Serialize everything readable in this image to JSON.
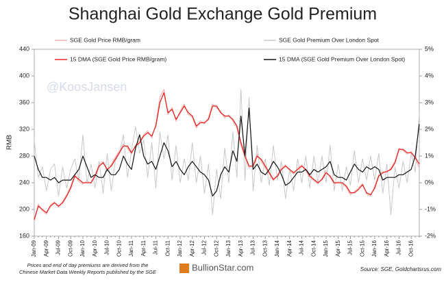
{
  "chart_data": {
    "type": "line",
    "title": "Shanghai Gold Exchange Gold Premium",
    "ylabel": "RMB",
    "watermark": "@KoosJansen",
    "note": [
      "Prices and end of day premiums are derived from the",
      "Chinese Market Data Weekly Reports published by the SGE"
    ],
    "logo": "BullionStar.com",
    "source": "Source: SGE, Goldchartsrus.com",
    "categories": [
      "Jan-09",
      null,
      null,
      "Apr-09",
      null,
      null,
      "Jul-09",
      null,
      null,
      "Oct-09",
      null,
      null,
      "Jan-10",
      null,
      null,
      "Apr-10",
      null,
      null,
      "Jul-10",
      null,
      null,
      "Oct-10",
      null,
      null,
      "Jan-11",
      null,
      null,
      "Apr-11",
      null,
      null,
      "Jul-11",
      null,
      null,
      "Oct-11",
      null,
      null,
      "Jan-12",
      null,
      null,
      "Apr-12",
      null,
      null,
      "Jul-12",
      null,
      null,
      "Oct-12",
      null,
      null,
      "Jan-13",
      null,
      null,
      "Apr-13",
      null,
      null,
      "Jul-13",
      null,
      null,
      "Oct-13",
      null,
      null,
      "Jan-14",
      null,
      null,
      "Apr-14",
      null,
      null,
      "Jul-14",
      null,
      null,
      "Oct-14",
      null,
      null,
      "Jan-15",
      null,
      null,
      "Apr-15",
      null,
      null,
      "Jul-15",
      null,
      null,
      "Oct-15",
      null,
      null,
      "Jan-16",
      null,
      null,
      "Apr-16",
      null,
      null,
      "Jul-16",
      null,
      null,
      "Oct-16",
      null,
      null
    ],
    "ylim": [
      160,
      440
    ],
    "yticks": [
      160,
      200,
      240,
      280,
      320,
      360,
      400,
      440
    ],
    "y2lim": [
      -2,
      5
    ],
    "y2ticks": [
      {
        "value": -2,
        "label": "-2%"
      },
      {
        "value": -1,
        "label": "-1%"
      },
      {
        "value": 0,
        "label": "0%"
      },
      {
        "value": 1,
        "label": "1%"
      },
      {
        "value": 2,
        "label": "2%"
      },
      {
        "value": 3,
        "label": "3%"
      },
      {
        "value": 4,
        "label": "4%"
      },
      {
        "value": 5,
        "label": "5%"
      }
    ],
    "series": [
      {
        "name": "SGE Gold Price RMB/gram",
        "color": "#f5b5b5",
        "width": 1.2,
        "values": [
          182,
          208,
          198,
          193,
          207,
          211,
          203,
          212,
          222,
          235,
          253,
          242,
          238,
          243,
          239,
          252,
          268,
          272,
          258,
          267,
          278,
          288,
          298,
          292,
          283,
          297,
          303,
          312,
          318,
          307,
          328,
          368,
          380,
          342,
          353,
          332,
          348,
          358,
          342,
          338,
          322,
          333,
          328,
          338,
          358,
          352,
          347,
          337,
          342,
          332,
          322,
          296,
          278,
          262,
          268,
          283,
          272,
          262,
          253,
          243,
          252,
          262,
          267,
          258,
          253,
          262,
          267,
          258,
          248,
          243,
          238,
          247,
          258,
          248,
          238,
          242,
          238,
          233,
          222,
          227,
          232,
          239,
          223,
          220,
          235,
          252,
          257,
          255,
          262,
          272,
          292,
          288,
          283,
          287,
          276,
          262
        ]
      },
      {
        "name": "SGE Gold Premium Over London Spot",
        "color": "#c8c8c8",
        "axis": "y2",
        "width": 1,
        "values": [
          1.6,
          0.2,
          0.6,
          -0.3,
          0.5,
          0.7,
          -0.5,
          0.6,
          -0.2,
          0.5,
          0.9,
          0.1,
          1.8,
          0.0,
          0.7,
          -0.2,
          0.8,
          -0.4,
          1.1,
          -0.3,
          0.8,
          1.1,
          1.8,
          0.2,
          1.2,
          2.1,
          1.1,
          1.6,
          0.2,
          1.5,
          -0.2,
          1.9,
          0.9,
          1.8,
          0.1,
          1.4,
          0.0,
          0.9,
          0.1,
          1.5,
          0.0,
          1.0,
          -0.4,
          0.7,
          -1.2,
          0.5,
          -0.6,
          1.3,
          0.0,
          1.9,
          0.2,
          3.5,
          0.1,
          3.2,
          -0.3,
          1.4,
          0.0,
          0.9,
          -0.1,
          1.4,
          0.1,
          0.8,
          -0.6,
          0.5,
          -0.3,
          0.9,
          0.0,
          1.0,
          -0.2,
          1.0,
          0.0,
          1.0,
          0.0,
          1.4,
          -0.3,
          0.7,
          -0.3,
          0.6,
          -0.1,
          1.2,
          0.0,
          0.9,
          0.1,
          1.0,
          0.1,
          1.1,
          -0.4,
          0.7,
          -1.2,
          0.6,
          -0.2,
          0.8,
          0.0,
          1.1,
          0.4,
          2.6
        ]
      },
      {
        "name": "15 DMA (SGE Gold Price RMB/gram)",
        "color": "#e8231f",
        "width": 1.3,
        "values": [
          185,
          205,
          200,
          195,
          205,
          210,
          205,
          210,
          220,
          232,
          250,
          245,
          240,
          240,
          240,
          250,
          265,
          270,
          260,
          265,
          275,
          285,
          295,
          295,
          285,
          295,
          300,
          310,
          315,
          310,
          325,
          360,
          375,
          345,
          350,
          335,
          345,
          355,
          345,
          340,
          325,
          330,
          330,
          335,
          355,
          355,
          345,
          340,
          340,
          335,
          325,
          300,
          280,
          265,
          265,
          280,
          275,
          265,
          255,
          245,
          250,
          260,
          265,
          260,
          255,
          260,
          265,
          260,
          250,
          245,
          240,
          245,
          255,
          250,
          240,
          240,
          240,
          235,
          225,
          225,
          230,
          237,
          225,
          222,
          232,
          250,
          255,
          257,
          260,
          270,
          290,
          290,
          285,
          285,
          278,
          268
        ]
      },
      {
        "name": "15 DMA (SGE Gold Premium Over London Spot)",
        "color": "#111111",
        "axis": "y2",
        "width": 1.2,
        "values": [
          1.0,
          0.5,
          0.2,
          0.2,
          0.1,
          0.2,
          0.0,
          0.1,
          0.1,
          0.1,
          0.3,
          0.5,
          1.0,
          0.6,
          0.2,
          0.3,
          0.2,
          0.2,
          0.5,
          0.3,
          0.3,
          0.5,
          1.0,
          0.7,
          0.5,
          1.3,
          1.8,
          1.0,
          0.7,
          0.8,
          0.5,
          1.0,
          1.5,
          1.2,
          0.6,
          0.8,
          0.5,
          0.3,
          0.6,
          0.8,
          0.6,
          0.4,
          0.3,
          0.1,
          -0.5,
          -0.3,
          0.3,
          0.6,
          0.4,
          1.2,
          0.8,
          2.5,
          1.0,
          2.8,
          0.5,
          0.7,
          0.4,
          0.3,
          0.5,
          0.8,
          0.6,
          0.3,
          -0.1,
          0.0,
          0.2,
          0.4,
          0.4,
          0.5,
          0.3,
          0.5,
          0.4,
          0.5,
          0.6,
          0.8,
          0.3,
          0.2,
          0.2,
          0.1,
          0.4,
          0.7,
          0.5,
          0.4,
          0.6,
          0.5,
          0.6,
          0.5,
          0.1,
          0.2,
          0.2,
          0.2,
          0.3,
          0.3,
          0.4,
          0.5,
          1.0,
          2.2
        ]
      }
    ]
  }
}
